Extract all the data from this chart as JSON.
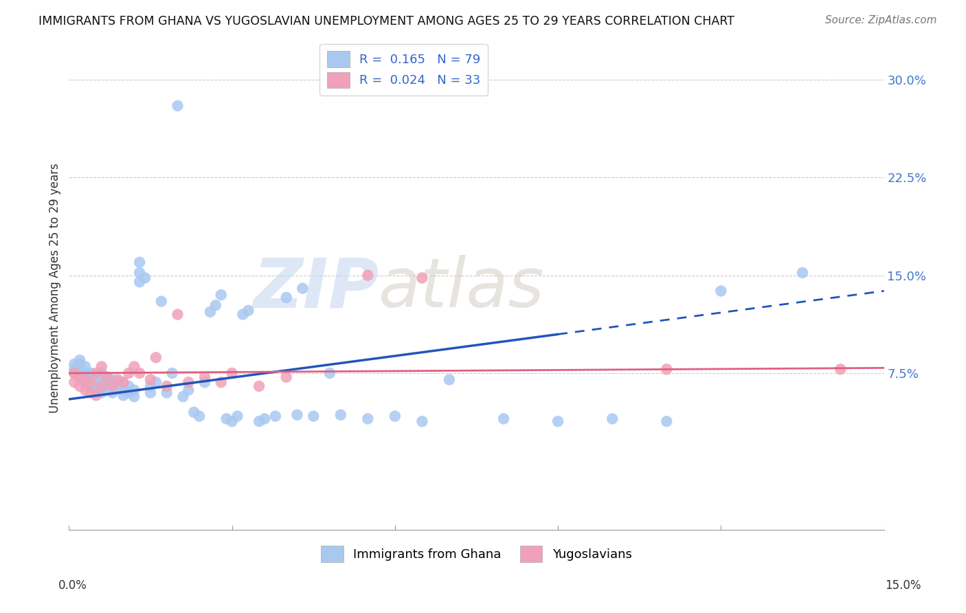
{
  "title": "IMMIGRANTS FROM GHANA VS YUGOSLAVIAN UNEMPLOYMENT AMONG AGES 25 TO 29 YEARS CORRELATION CHART",
  "source": "Source: ZipAtlas.com",
  "ylabel": "Unemployment Among Ages 25 to 29 years",
  "ylabel_ticks": [
    "7.5%",
    "15.0%",
    "22.5%",
    "30.0%"
  ],
  "ylabel_tick_vals": [
    0.075,
    0.15,
    0.225,
    0.3
  ],
  "xlim": [
    0.0,
    0.15
  ],
  "ylim": [
    -0.045,
    0.325
  ],
  "ghana_R": "0.165",
  "ghana_N": "79",
  "yugo_R": "0.024",
  "yugo_N": "33",
  "ghana_color": "#a8c8f0",
  "yugo_color": "#f0a0b8",
  "ghana_line_color": "#2255bb",
  "yugo_line_color": "#e06080",
  "watermark_zip": "ZIP",
  "watermark_atlas": "atlas",
  "legend_label_ghana": "Immigrants from Ghana",
  "legend_label_yugo": "Yugoslavians",
  "ghana_line_x0": 0.0,
  "ghana_line_y0": 0.055,
  "ghana_line_x1": 0.15,
  "ghana_line_y1": 0.138,
  "yugo_line_x0": 0.0,
  "yugo_line_y0": 0.075,
  "yugo_line_x1": 0.15,
  "yugo_line_y1": 0.079,
  "ghana_x": [
    0.001,
    0.001,
    0.001,
    0.002,
    0.002,
    0.002,
    0.002,
    0.003,
    0.003,
    0.003,
    0.004,
    0.004,
    0.004,
    0.005,
    0.005,
    0.005,
    0.005,
    0.006,
    0.006,
    0.006,
    0.006,
    0.007,
    0.007,
    0.007,
    0.008,
    0.008,
    0.008,
    0.009,
    0.009,
    0.01,
    0.01,
    0.01,
    0.011,
    0.011,
    0.012,
    0.012,
    0.013,
    0.013,
    0.013,
    0.014,
    0.015,
    0.015,
    0.016,
    0.017,
    0.018,
    0.019,
    0.02,
    0.021,
    0.022,
    0.023,
    0.024,
    0.025,
    0.026,
    0.027,
    0.028,
    0.029,
    0.03,
    0.031,
    0.032,
    0.033,
    0.035,
    0.036,
    0.038,
    0.04,
    0.042,
    0.043,
    0.045,
    0.048,
    0.05,
    0.055,
    0.06,
    0.065,
    0.07,
    0.08,
    0.09,
    0.1,
    0.11,
    0.12,
    0.135
  ],
  "ghana_y": [
    0.075,
    0.078,
    0.082,
    0.072,
    0.078,
    0.082,
    0.085,
    0.068,
    0.075,
    0.08,
    0.065,
    0.07,
    0.075,
    0.062,
    0.065,
    0.068,
    0.072,
    0.06,
    0.063,
    0.068,
    0.075,
    0.062,
    0.065,
    0.072,
    0.06,
    0.065,
    0.07,
    0.063,
    0.068,
    0.058,
    0.062,
    0.068,
    0.06,
    0.065,
    0.057,
    0.062,
    0.145,
    0.152,
    0.16,
    0.148,
    0.06,
    0.065,
    0.068,
    0.13,
    0.06,
    0.075,
    0.28,
    0.057,
    0.062,
    0.045,
    0.042,
    0.068,
    0.122,
    0.127,
    0.135,
    0.04,
    0.038,
    0.042,
    0.12,
    0.123,
    0.038,
    0.04,
    0.042,
    0.133,
    0.043,
    0.14,
    0.042,
    0.075,
    0.043,
    0.04,
    0.042,
    0.038,
    0.07,
    0.04,
    0.038,
    0.04,
    0.038,
    0.138,
    0.152
  ],
  "yugo_x": [
    0.001,
    0.001,
    0.002,
    0.002,
    0.003,
    0.003,
    0.004,
    0.004,
    0.005,
    0.005,
    0.006,
    0.006,
    0.007,
    0.008,
    0.009,
    0.01,
    0.011,
    0.012,
    0.013,
    0.015,
    0.016,
    0.018,
    0.02,
    0.022,
    0.025,
    0.028,
    0.03,
    0.035,
    0.04,
    0.055,
    0.065,
    0.11,
    0.142
  ],
  "yugo_y": [
    0.068,
    0.075,
    0.065,
    0.072,
    0.062,
    0.07,
    0.06,
    0.068,
    0.058,
    0.075,
    0.065,
    0.08,
    0.072,
    0.065,
    0.07,
    0.068,
    0.075,
    0.08,
    0.075,
    0.07,
    0.087,
    0.065,
    0.12,
    0.068,
    0.072,
    0.068,
    0.075,
    0.065,
    0.072,
    0.15,
    0.148,
    0.078,
    0.078
  ]
}
